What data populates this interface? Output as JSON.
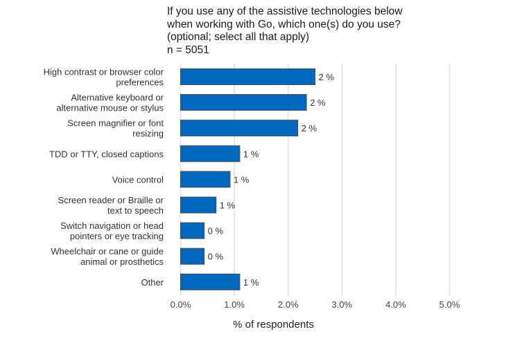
{
  "chart_data": {
    "type": "bar",
    "orientation": "horizontal",
    "title": [
      "If you use any of the assistive technologies below",
      "when working with Go, which one(s) do you use?",
      "(optional; select all that apply)"
    ],
    "subtitle": "n = 5051",
    "categories": [
      [
        "High contrast or browser color",
        "preferences"
      ],
      [
        "Alternative keyboard or",
        "alternative mouse or stylus"
      ],
      [
        "Screen magnifier or font",
        "resizing"
      ],
      [
        "TDD or TTY, closed captions"
      ],
      [
        "Voice control"
      ],
      [
        "Screen reader or Braille or",
        "text to speech"
      ],
      [
        "Switch navigation or head",
        "pointers or eye tracking"
      ],
      [
        "Wheelchair or cane or guide",
        "animal or prosthetics"
      ],
      [
        "Other"
      ]
    ],
    "values": [
      2.5,
      2.34,
      2.18,
      1.1,
      0.92,
      0.66,
      0.44,
      0.44,
      1.1
    ],
    "data_labels": [
      "2 %",
      "2 %",
      "2 %",
      "1 %",
      "1 %",
      "1 %",
      "0 %",
      "0 %",
      "1 %"
    ],
    "xlabel": "% of respondents",
    "ylabel": "",
    "xlim": [
      0,
      5.2
    ],
    "xticks": [
      0,
      1,
      2,
      3,
      4,
      5
    ],
    "xtick_labels": [
      "0.0%",
      "1.0%",
      "2.0%",
      "3.0%",
      "4.0%",
      "5.0%"
    ],
    "grid": "vertical",
    "bar_color": "#0068be",
    "bar_edge": "#4a4a4a"
  }
}
